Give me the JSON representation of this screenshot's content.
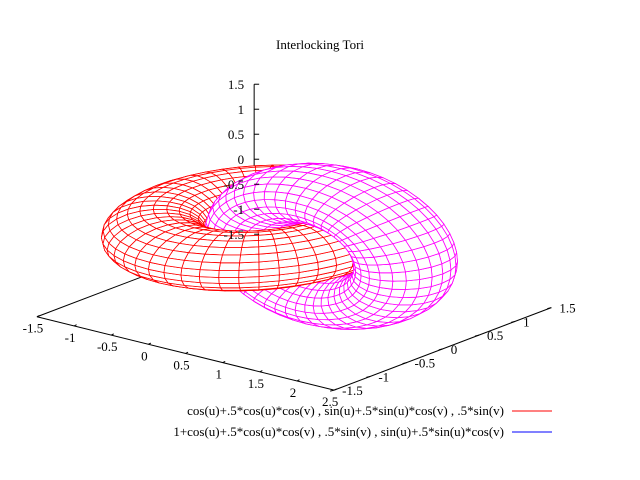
{
  "chart_data": {
    "type": "surface3d",
    "title": "Interlocking Tori",
    "view": {
      "azimuth_label": "default",
      "hidden_line": true
    },
    "axes": {
      "x": {
        "range": [
          -1.5,
          2.5
        ],
        "ticks": [
          "-1.5",
          "-1",
          "-0.5",
          "0",
          "0.5",
          "1",
          "1.5",
          "2",
          "2.5"
        ]
      },
      "y": {
        "range": [
          -1.5,
          1.5
        ],
        "ticks": [
          "-1.5",
          "-1",
          "-0.5",
          "0",
          "0.5",
          "1",
          "1.5"
        ]
      },
      "z": {
        "range": [
          -1.5,
          1.5
        ],
        "ticks": [
          "-1.5",
          "-1",
          "-0.5",
          "0",
          "0.5",
          "1",
          "1.5"
        ]
      }
    },
    "series": [
      {
        "name": "cos(u)+.5*cos(u)*cos(v) , sin(u)+.5*sin(u)*cos(v) , .5*sin(v)",
        "surface_color": "#ff0000",
        "legend_color": "#ff0000",
        "params": {
          "u_range": [
            -3.14159,
            3.14159
          ],
          "v_range": [
            -3.14159,
            3.14159
          ],
          "u_samples": 48,
          "v_samples": 24
        }
      },
      {
        "name": "1+cos(u)+.5*cos(u)*cos(v) , .5*sin(v) , sin(u)+.5*sin(u)*cos(v)",
        "surface_color": "#ff00ff",
        "legend_color": "#0000ff",
        "params": {
          "u_range": [
            -3.14159,
            3.14159
          ],
          "v_range": [
            -3.14159,
            3.14159
          ],
          "u_samples": 48,
          "v_samples": 24
        }
      }
    ]
  }
}
